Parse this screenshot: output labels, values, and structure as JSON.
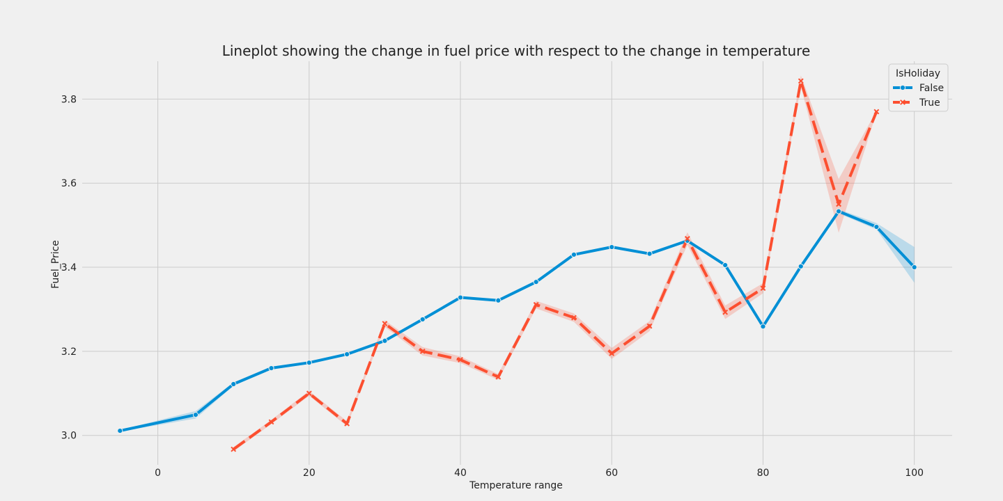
{
  "chart_data": {
    "type": "line",
    "title": "Lineplot showing the change in fuel price with respect to the change in temperature",
    "xlabel": "Temperature range",
    "ylabel": "Fuel_Price",
    "xlim": [
      -10,
      105
    ],
    "ylim": [
      2.93,
      3.89
    ],
    "xticks": [
      0,
      20,
      40,
      60,
      80,
      100
    ],
    "yticks": [
      3.0,
      3.2,
      3.4,
      3.6,
      3.8
    ],
    "xtick_labels": [
      "0",
      "20",
      "40",
      "60",
      "80",
      "100"
    ],
    "ytick_labels": [
      "3.0",
      "3.2",
      "3.4",
      "3.6",
      "3.8"
    ],
    "grid": true,
    "legend": {
      "title": "IsHoliday",
      "position": "top-right"
    },
    "series": [
      {
        "name": "False",
        "color": "#008fd5",
        "marker": "circle",
        "dash": "solid",
        "x": [
          -5,
          5,
          10,
          15,
          20,
          25,
          30,
          35,
          40,
          45,
          50,
          55,
          60,
          65,
          70,
          75,
          80,
          85,
          90,
          95,
          100
        ],
        "y": [
          3.011,
          3.049,
          3.122,
          3.16,
          3.173,
          3.193,
          3.225,
          3.276,
          3.328,
          3.321,
          3.365,
          3.43,
          3.448,
          3.432,
          3.463,
          3.405,
          3.259,
          3.402,
          3.533,
          3.496,
          3.4
        ],
        "ci_low": [
          3.009,
          3.04,
          3.118,
          3.157,
          3.17,
          3.19,
          3.222,
          3.273,
          3.325,
          3.318,
          3.362,
          3.427,
          3.445,
          3.429,
          3.46,
          3.401,
          3.255,
          3.398,
          3.528,
          3.49,
          3.363
        ],
        "ci_high": [
          3.013,
          3.058,
          3.126,
          3.163,
          3.176,
          3.196,
          3.228,
          3.279,
          3.331,
          3.324,
          3.368,
          3.433,
          3.451,
          3.435,
          3.466,
          3.409,
          3.263,
          3.406,
          3.538,
          3.505,
          3.448
        ]
      },
      {
        "name": "True",
        "color": "#fc4f30",
        "marker": "x",
        "dash": "dashed",
        "x": [
          10,
          15,
          20,
          25,
          30,
          35,
          40,
          45,
          50,
          55,
          60,
          65,
          70,
          75,
          80,
          85,
          90,
          95
        ],
        "y": [
          2.967,
          3.032,
          3.1,
          3.028,
          3.266,
          3.2,
          3.18,
          3.139,
          3.311,
          3.28,
          3.195,
          3.26,
          3.468,
          3.293,
          3.35,
          3.843,
          3.55,
          3.77
        ],
        "ci_low": [
          2.962,
          3.027,
          3.094,
          3.022,
          3.258,
          3.19,
          3.172,
          3.132,
          3.302,
          3.27,
          3.182,
          3.248,
          3.453,
          3.277,
          3.338,
          3.83,
          3.482,
          3.768
        ],
        "ci_high": [
          2.972,
          3.037,
          3.106,
          3.034,
          3.274,
          3.21,
          3.188,
          3.146,
          3.32,
          3.29,
          3.208,
          3.272,
          3.483,
          3.309,
          3.362,
          3.856,
          3.61,
          3.772
        ]
      }
    ]
  }
}
